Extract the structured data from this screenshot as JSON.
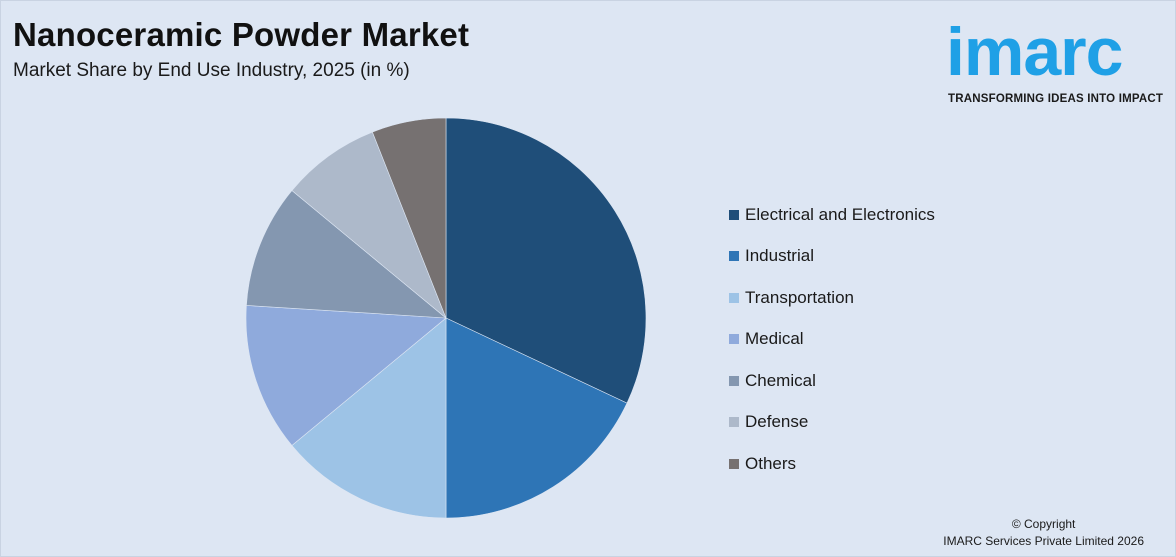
{
  "header": {
    "title": "Nanoceramic Powder Market",
    "subtitle": "Market Share by End Use Industry, 2025 (in %)"
  },
  "logo": {
    "word": "imarc",
    "tagline": "TRANSFORMING IDEAS INTO IMPACT"
  },
  "footer": {
    "copyright_line1": "© Copyright",
    "copyright_line2": "IMARC Services Private Limited 2026"
  },
  "chart_data": {
    "type": "pie",
    "title": "Nanoceramic Powder Market",
    "subtitle": "Market Share by End Use Industry, 2025 (in %)",
    "categories": [
      "Electrical and Electronics",
      "Industrial",
      "Transportation",
      "Medical",
      "Chemical",
      "Defense",
      "Others"
    ],
    "values": [
      32,
      18,
      14,
      12,
      10,
      8,
      6
    ],
    "colors": [
      "#1f4e79",
      "#2e75b6",
      "#9dc3e6",
      "#8faadc",
      "#8497b0",
      "#adb9ca",
      "#767171"
    ],
    "start_angle": "12 o'clock",
    "direction": "clockwise",
    "legend_position": "right"
  }
}
